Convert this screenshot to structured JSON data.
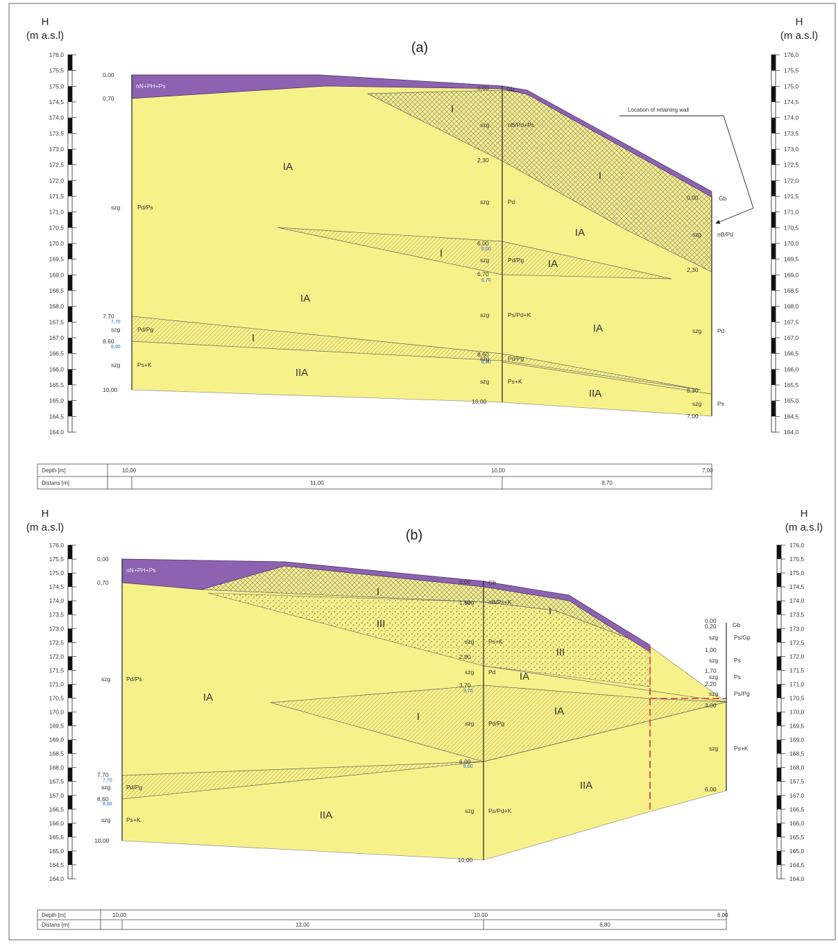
{
  "axis": {
    "title_letter": "H",
    "title_unit": "(m a.s.l)",
    "ticks": [
      "176,0",
      "175,5",
      "175,0",
      "174,5",
      "174,0",
      "173,5",
      "173,0",
      "172,5",
      "172,0",
      "171,5",
      "171,0",
      "170,5",
      "170,0",
      "169,5",
      "169,0",
      "168,5",
      "168,0",
      "167,5",
      "167,0",
      "166,5",
      "166,0",
      "165,5",
      "165,0",
      "164,5",
      "164,0"
    ]
  },
  "colors": {
    "fill": "#f7f18a",
    "fill_line": "#999999",
    "topsoil": "#8d62b0",
    "hatch": "#777777",
    "bore": "#222222",
    "water": "#2a5fd0",
    "wall": "#d03030"
  },
  "panel_a": {
    "title": "(a)",
    "zones": [
      "IA",
      "IA",
      "I",
      "I",
      "I",
      "I",
      "IA",
      "IA",
      "IA",
      "IIA",
      "IIA"
    ],
    "topsoil_label": "nN+PH+Ps",
    "callout": "Location of retaining wall",
    "boreholes": [
      {
        "depths": [
          "0,00",
          "0,70",
          "7,70",
          "8,60",
          "10,00"
        ],
        "wl": [
          "7,70",
          "8,60"
        ],
        "codes": [
          "szg",
          "szg",
          "szg"
        ],
        "soils": [
          "Pd/Ps",
          "Pd/Pg",
          "Ps+K"
        ]
      },
      {
        "depths": [
          "0,00",
          "2,30",
          "6,00",
          "6,70",
          "8,60",
          "10,00"
        ],
        "wl": [
          "6,00",
          "6,70",
          "8,60"
        ],
        "codes": [
          "Gb",
          "szg",
          "szg",
          "szg",
          "szg",
          "szg",
          "szg"
        ],
        "soils": [
          "nB/Pd+Ps",
          "Pd",
          "Pd/Pg",
          "Ps/Pd+K",
          "Pd/Pg",
          "Ps+K"
        ]
      },
      {
        "depths": [
          "0,00",
          "2,30",
          "6,30",
          "7,00"
        ],
        "codes": [
          "Gb",
          "szg",
          "szg",
          "szg"
        ],
        "soils": [
          "nB/Pd",
          "Pd",
          "Ps"
        ]
      }
    ],
    "table": {
      "depth_label": "Depth [m]",
      "dist_label": "Distans [m]",
      "depths": [
        "10,00",
        "10,00",
        "7,00"
      ],
      "dists": [
        "11,00",
        "8,70"
      ]
    }
  },
  "panel_b": {
    "title": "(b)",
    "zones": [
      "IA",
      "IA",
      "I",
      "I",
      "I",
      "III",
      "III",
      "IA",
      "IIA",
      "IIA"
    ],
    "topsoil_label": "nN+PH+Ps",
    "boreholes": [
      {
        "depths": [
          "0,00",
          "0,70",
          "7,70",
          "8,60",
          "10,00"
        ],
        "wl": [
          "7,70",
          "8,60"
        ],
        "codes": [
          "szg",
          "szg",
          "szg"
        ],
        "soils": [
          "Pd/Ps",
          "Pd/Pg",
          "Ps+K"
        ]
      },
      {
        "depths": [
          "0,00",
          "1,50",
          "2,80",
          "3,70",
          "6,00",
          "10,00"
        ],
        "wl": [
          "3,70",
          "6,00"
        ],
        "codes": [
          "Gb",
          "szg",
          "szg",
          "szg",
          "szg",
          "szg"
        ],
        "soils": [
          "nB/Ps+K",
          "Ps+K",
          "Pd",
          "Pd/Pg",
          "Ps/Pd+K"
        ]
      },
      {
        "depths": [
          "0,00",
          "0,20",
          "1,00",
          "1,70",
          "2,20",
          "3,00",
          "6,00"
        ],
        "codes": [
          "Gb",
          "szg",
          "szg",
          "szg",
          "szg",
          "szg"
        ],
        "soils": [
          "Ps/Gp",
          "Ps",
          "Ps",
          "Ps/Pg",
          "Ps+K"
        ]
      }
    ],
    "table": {
      "depth_label": "Depth [m]",
      "dist_label": "Distans [m]",
      "depths": [
        "10,00",
        "10,00",
        "6,00"
      ],
      "dists": [
        "13,00",
        "6,80"
      ]
    }
  }
}
